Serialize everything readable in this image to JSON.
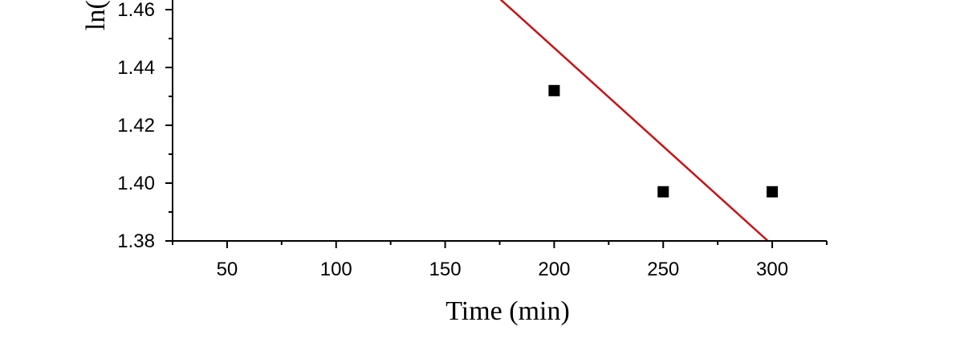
{
  "chart_data": {
    "type": "scatter",
    "title": "",
    "xlabel": "Time (min)",
    "ylabel": "ln(",
    "xlim": [
      25,
      325
    ],
    "ylim": [
      1.38,
      1.46
    ],
    "x_ticks": [
      50,
      100,
      150,
      200,
      250,
      300
    ],
    "x_tick_labels": [
      "50",
      "100",
      "150",
      "200",
      "250",
      "300"
    ],
    "y_ticks": [
      1.38,
      1.4,
      1.42,
      1.44,
      1.46
    ],
    "y_tick_labels": [
      "1.38",
      "1.40",
      "1.42",
      "1.44",
      "1.46"
    ],
    "series": [
      {
        "marker": "square",
        "color": "#000000",
        "points": [
          {
            "x": 200,
            "y": 1.432
          },
          {
            "x": 250,
            "y": 1.397
          },
          {
            "x": 300,
            "y": 1.397
          }
        ]
      }
    ],
    "fit_line": {
      "color": "#cc1111",
      "points": [
        {
          "x": 175,
          "y": 1.4638
        },
        {
          "x": 298,
          "y": 1.38
        }
      ]
    },
    "grid": false,
    "legend": "none"
  }
}
